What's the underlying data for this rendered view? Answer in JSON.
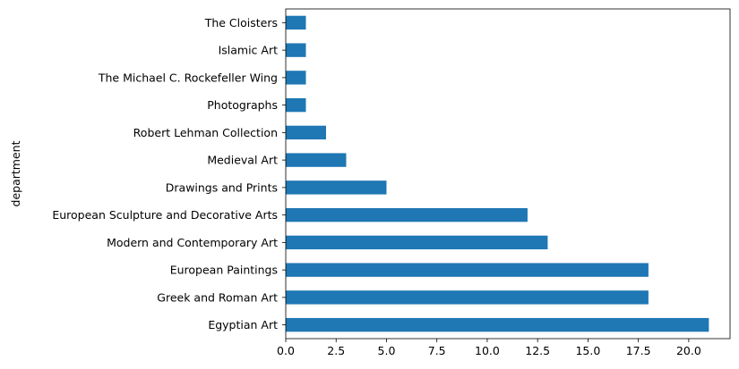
{
  "chart_data": {
    "type": "bar",
    "orientation": "horizontal",
    "categories": [
      "Egyptian Art",
      "Greek and Roman Art",
      "European Paintings",
      "Modern and Contemporary Art",
      "European Sculpture and Decorative Arts",
      "Drawings and Prints",
      "Medieval Art",
      "Robert Lehman Collection",
      "Photographs",
      "The Michael C. Rockefeller Wing",
      "Islamic Art",
      "The Cloisters"
    ],
    "values": [
      21,
      18,
      18,
      13,
      12,
      5,
      3,
      2,
      1,
      1,
      1,
      1
    ],
    "title": "",
    "xlabel": "",
    "ylabel": "department",
    "xlim": [
      0,
      22.05
    ],
    "xticks": [
      0,
      2.5,
      5,
      7.5,
      10,
      12.5,
      15,
      17.5,
      20
    ],
    "xtick_labels": [
      "0.0",
      "2.5",
      "5.0",
      "7.5",
      "10.0",
      "12.5",
      "15.0",
      "17.5",
      "20.0"
    ],
    "bar_color": "#1f77b4",
    "grid": false,
    "legend": "none"
  }
}
